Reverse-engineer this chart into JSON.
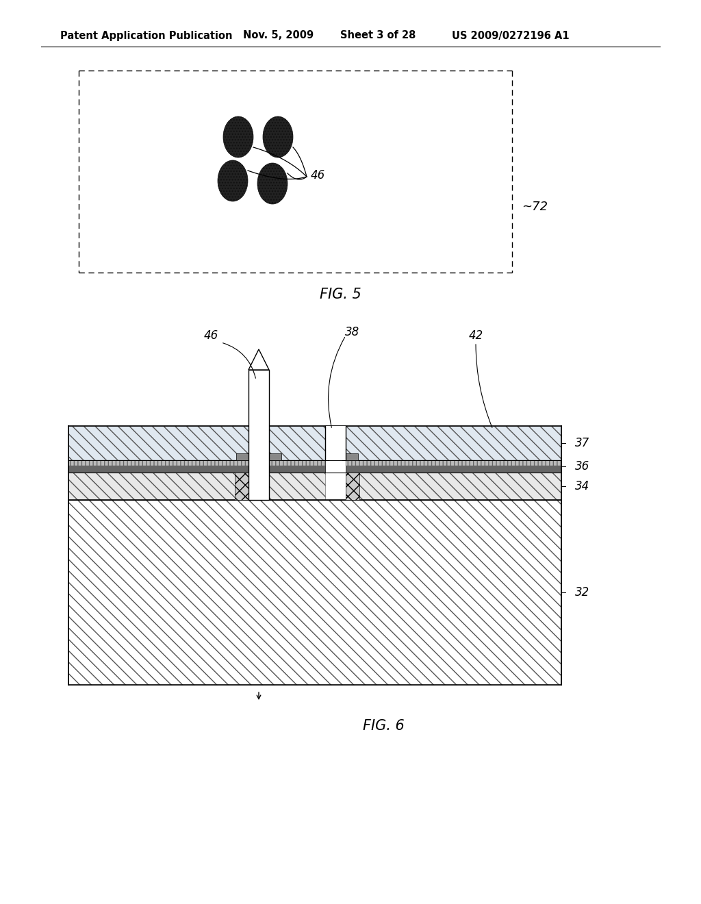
{
  "bg_color": "#ffffff",
  "header_text": "Patent Application Publication",
  "header_date": "Nov. 5, 2009",
  "header_sheet": "Sheet 3 of 28",
  "header_patent": "US 2009/0272196 A1",
  "fig5_label": "FIG. 5",
  "fig6_label": "FIG. 6",
  "label_46": "46",
  "label_38": "38",
  "label_42": "42",
  "label_37": "37",
  "label_36": "36",
  "label_34": "34",
  "label_32": "32",
  "label_72": "~72",
  "label_46_fig5": "46"
}
